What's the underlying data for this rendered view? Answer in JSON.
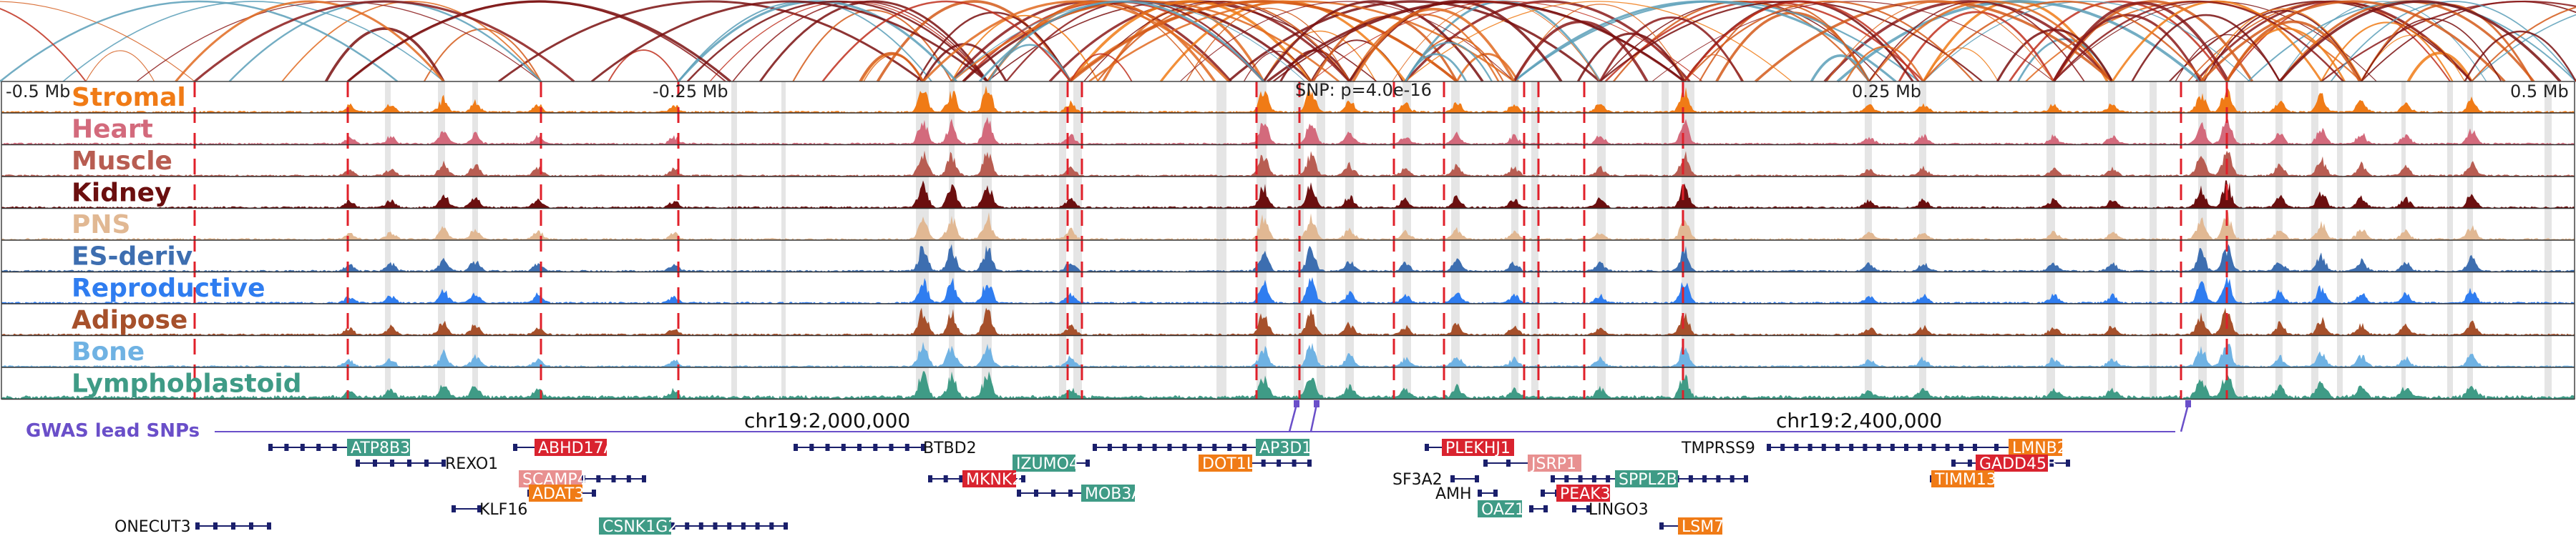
{
  "axis": {
    "left_label": "-0.5 Mb",
    "mid_left_label": "-0.25 Mb",
    "snp_label": "SNP: p=4.0e-16",
    "mid_right_label": "0.25 Mb",
    "right_label": "0.5 Mb"
  },
  "tracks": [
    {
      "name": "Stromal",
      "color": "#f07b16"
    },
    {
      "name": "Heart",
      "color": "#d36a7c"
    },
    {
      "name": "Muscle",
      "color": "#b85d52"
    },
    {
      "name": "Kidney",
      "color": "#6b0f0f"
    },
    {
      "name": "PNS",
      "color": "#e1b893"
    },
    {
      "name": "ES-deriv",
      "color": "#3d6eb0"
    },
    {
      "name": "Reproductive",
      "color": "#2f7df0"
    },
    {
      "name": "Adipose",
      "color": "#a6502b"
    },
    {
      "name": "Bone",
      "color": "#6fb2e3"
    },
    {
      "name": "Lymphoblastoid",
      "color": "#3f9b86"
    }
  ],
  "coords": {
    "left": "chr19:2,000,000",
    "right": "chr19:2,400,000"
  },
  "gwas_label": "GWAS lead SNPs",
  "gwas_color": "#6a4fc9",
  "genes": [
    {
      "name": "ATP8B3",
      "boxed": true,
      "color": "#3f9b86"
    },
    {
      "name": "REXO1",
      "boxed": false,
      "color": ""
    },
    {
      "name": "ABHD17A",
      "boxed": true,
      "color": "#d9232f"
    },
    {
      "name": "SCAMP4",
      "boxed": true,
      "color": "#e89090"
    },
    {
      "name": "ADAT3",
      "boxed": true,
      "color": "#f07b16"
    },
    {
      "name": "KLF16",
      "boxed": false,
      "color": ""
    },
    {
      "name": "ONECUT3",
      "boxed": false,
      "color": ""
    },
    {
      "name": "CSNK1G2",
      "boxed": true,
      "color": "#3f9b86"
    },
    {
      "name": "BTBD2",
      "boxed": false,
      "color": ""
    },
    {
      "name": "IZUMO4",
      "boxed": true,
      "color": "#3f9b86"
    },
    {
      "name": "MKNK2",
      "boxed": true,
      "color": "#d9232f"
    },
    {
      "name": "MOB3A",
      "boxed": true,
      "color": "#3f9b86"
    },
    {
      "name": "AP3D1",
      "boxed": true,
      "color": "#3f9b86"
    },
    {
      "name": "DOT1L",
      "boxed": true,
      "color": "#f07b16"
    },
    {
      "name": "PLEKHJ1",
      "boxed": true,
      "color": "#d9232f"
    },
    {
      "name": "SF3A2",
      "boxed": false,
      "color": ""
    },
    {
      "name": "AMH",
      "boxed": false,
      "color": ""
    },
    {
      "name": "OAZ1",
      "boxed": true,
      "color": "#3f9b86"
    },
    {
      "name": "JSRP1",
      "boxed": true,
      "color": "#e89090"
    },
    {
      "name": "SPPL2B",
      "boxed": true,
      "color": "#3f9b86"
    },
    {
      "name": "PEAK3",
      "boxed": true,
      "color": "#d9232f"
    },
    {
      "name": "LINGO3",
      "boxed": false,
      "color": ""
    },
    {
      "name": "LSM7",
      "boxed": true,
      "color": "#f07b16"
    },
    {
      "name": "TMPRSS9",
      "boxed": false,
      "color": ""
    },
    {
      "name": "LMNB2",
      "boxed": true,
      "color": "#f07b16"
    },
    {
      "name": "GADD45B",
      "boxed": true,
      "color": "#d9232f"
    },
    {
      "name": "TIMM13",
      "boxed": true,
      "color": "#f07b16"
    }
  ],
  "colors": {
    "highlight": "#d0d0d0",
    "red_line": "#e0202a",
    "gene_line": "#1a1f6b"
  }
}
